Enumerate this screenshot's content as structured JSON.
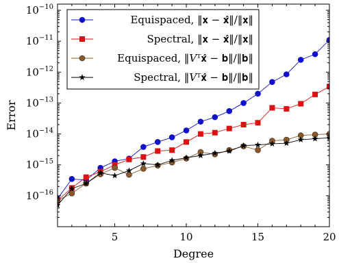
{
  "chart_data": {
    "type": "line",
    "title": "",
    "xlabel": "Degree",
    "ylabel": "Error",
    "xlim": [
      1,
      20
    ],
    "ylim_exp": [
      -17,
      -9.8
    ],
    "yscale": "log",
    "x_ticks": [
      5,
      10,
      15,
      20
    ],
    "y_ticks_exp": [
      -16,
      -15,
      -14,
      -13,
      -12,
      -11,
      -10
    ],
    "y_tick_labels": [
      {
        "base": "10",
        "exp": "−16"
      },
      {
        "base": "10",
        "exp": "−15"
      },
      {
        "base": "10",
        "exp": "−14"
      },
      {
        "base": "10",
        "exp": "−13"
      },
      {
        "base": "10",
        "exp": "−12"
      },
      {
        "base": "10",
        "exp": "−11"
      },
      {
        "base": "10",
        "exp": "−10"
      }
    ],
    "grid": false,
    "legend_position": "top-left",
    "x": [
      1,
      2,
      3,
      4,
      5,
      6,
      7,
      8,
      9,
      10,
      11,
      12,
      13,
      14,
      15,
      16,
      17,
      18,
      19,
      20
    ],
    "series": [
      {
        "name": "Equispaced, ‖x − x̂‖/‖x‖",
        "legend": {
          "prefix": "Equispaced, ",
          "math": "‖𝐱 − 𝐱̂‖/‖𝐱‖"
        },
        "color": "#1010cc",
        "marker": "circle",
        "values": [
          8e-17,
          3.5e-16,
          3.2e-16,
          8e-16,
          1.3e-15,
          1.6e-15,
          3.8e-15,
          5.5e-15,
          7.8e-15,
          1.3e-14,
          2.5e-14,
          3.5e-14,
          5.5e-14,
          1e-13,
          2e-13,
          4.8e-13,
          8.5e-13,
          2.5e-12,
          3.8e-12,
          1.1e-11
        ]
      },
      {
        "name": "Spectral, ‖x − x̂‖/‖x‖",
        "legend": {
          "prefix": "Spectral, ",
          "math": "‖𝐱 − 𝐱̂‖/‖𝐱‖"
        },
        "color": "#dd1111",
        "marker": "square",
        "values": [
          7e-17,
          1.8e-16,
          4e-16,
          6e-16,
          1e-15,
          1.5e-15,
          1.8e-15,
          2.8e-15,
          3e-15,
          5.5e-15,
          1e-14,
          1.1e-14,
          1.5e-14,
          2e-14,
          2.3e-14,
          7e-14,
          6.5e-14,
          9.5e-14,
          1.9e-13,
          3.4e-13
        ]
      },
      {
        "name": "Equispaced, ‖Vᵀx̂ − b‖/‖b‖",
        "legend": {
          "prefix": "Equispaced, ",
          "math": "‖𝑉ᵀ𝐱̂ − 𝐛‖/‖𝐛‖"
        },
        "color": "#8b5a2b",
        "marker": "circle",
        "values": [
          7e-17,
          1.2e-16,
          2.5e-16,
          5e-16,
          8e-16,
          4.8e-16,
          7.5e-16,
          9.5e-16,
          1.2e-15,
          1.6e-15,
          2.6e-15,
          2.2e-15,
          3e-15,
          4e-15,
          3e-15,
          6e-15,
          6.5e-15,
          9e-15,
          9.5e-15,
          1e-14
        ]
      },
      {
        "name": "Spectral, ‖Vᵀx̂ − b‖/‖b‖",
        "legend": {
          "prefix": "Spectral, ",
          "math": "‖𝑉ᵀ𝐱̂ − 𝐛‖/‖𝐛‖"
        },
        "color": "#000000",
        "marker": "star",
        "values": [
          5e-17,
          1.7e-16,
          2.5e-16,
          5.5e-16,
          4.5e-16,
          6.5e-16,
          1.1e-15,
          1e-15,
          1.4e-15,
          1.7e-15,
          2e-15,
          2.4e-15,
          2.8e-15,
          4.2e-15,
          4.4e-15,
          4.8e-15,
          5e-15,
          6.5e-15,
          7e-15,
          7.5e-15
        ]
      }
    ]
  }
}
